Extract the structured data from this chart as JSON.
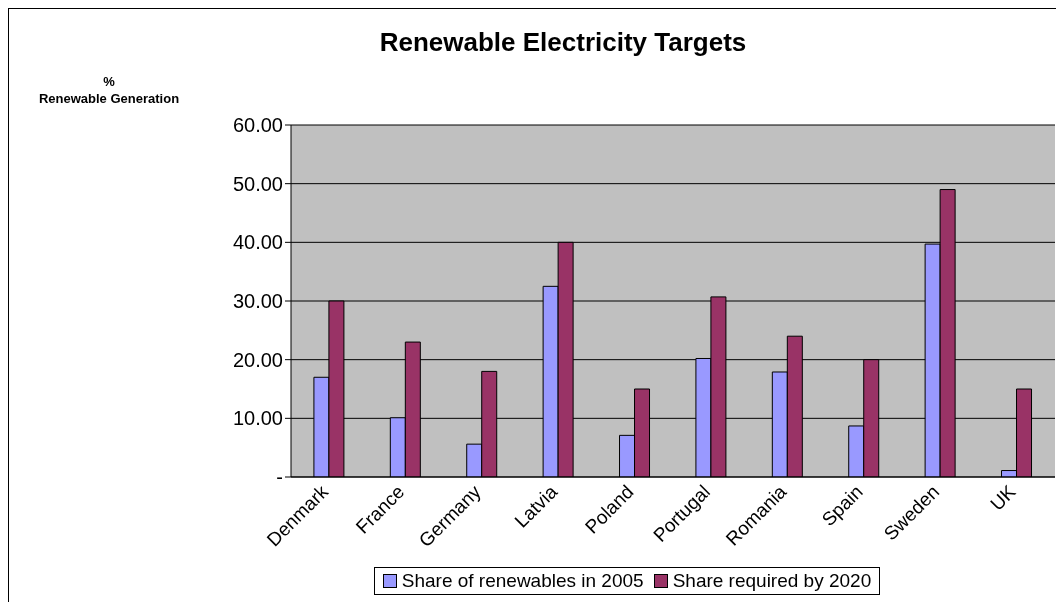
{
  "chart_data": {
    "type": "bar",
    "title": "Renewable Electricity Targets",
    "ylabel": "%\nRenewable Generation",
    "categories": [
      "Denmark",
      "France",
      "Germany",
      "Latvia",
      "Poland",
      "Portugal",
      "Romania",
      "Spain",
      "Sweden",
      "UK"
    ],
    "series": [
      {
        "name": "Share of renewables in 2005",
        "color": "#9999ff",
        "values": [
          17,
          10.1,
          5.6,
          32.5,
          7.1,
          20.2,
          17.9,
          8.7,
          39.7,
          1.1
        ]
      },
      {
        "name": "Share required by 2020",
        "color": "#993366",
        "values": [
          30,
          23,
          18,
          40,
          15,
          30.7,
          24,
          20,
          49,
          15
        ]
      }
    ],
    "ylim": [
      0,
      60
    ],
    "yticks": [
      {
        "value": 0,
        "label": "-"
      },
      {
        "value": 10,
        "label": "10.00"
      },
      {
        "value": 20,
        "label": "20.00"
      },
      {
        "value": 30,
        "label": "30.00"
      },
      {
        "value": 40,
        "label": "40.00"
      },
      {
        "value": 50,
        "label": "50.00"
      },
      {
        "value": 60,
        "label": "60.00"
      }
    ],
    "grid": "y",
    "legend": "bottom"
  }
}
